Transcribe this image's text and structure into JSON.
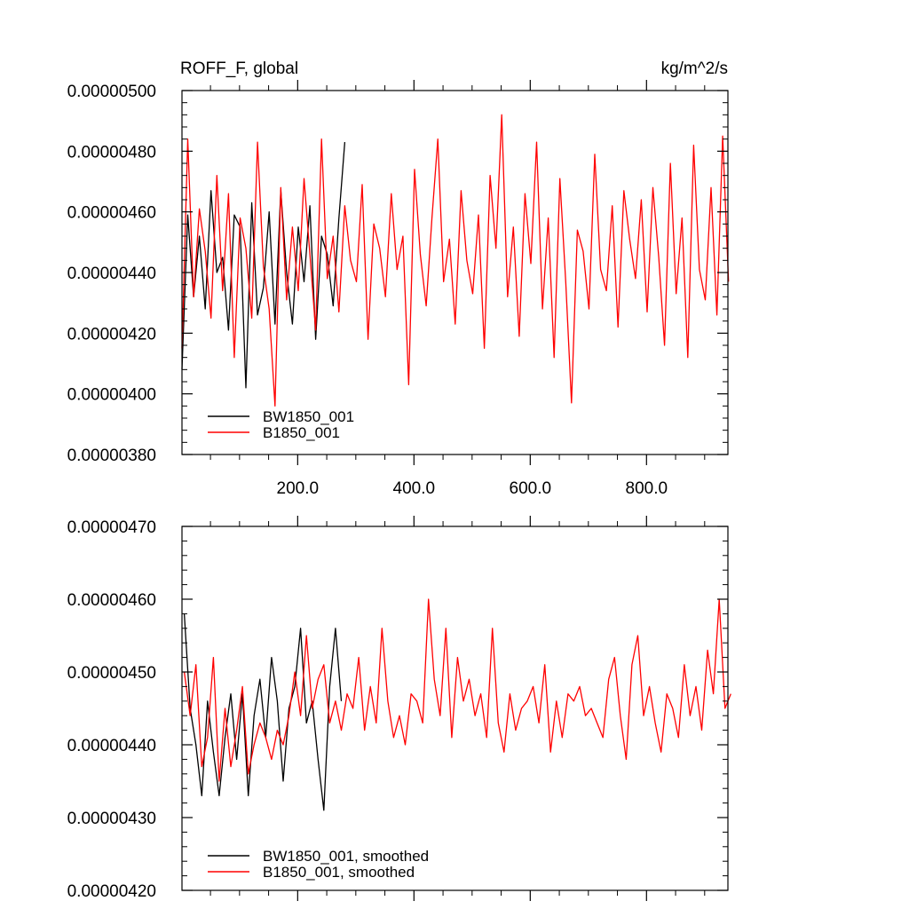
{
  "chart_data": [
    {
      "type": "line",
      "title": "ROFF_F, global",
      "title_right": "kg/m^2/s",
      "xlabel": "",
      "ylabel": "",
      "xlim": [
        1,
        940
      ],
      "ylim": [
        3.8e-06,
        5e-06
      ],
      "x_ticks": [
        200.0,
        400.0,
        600.0,
        800.0
      ],
      "x_tick_labels": [
        "200.0",
        "400.0",
        "600.0",
        "800.0"
      ],
      "y_ticks": [
        3.8e-06,
        4e-06,
        4.2e-06,
        4.4e-06,
        4.6e-06,
        4.8e-06,
        5e-06
      ],
      "y_tick_labels": [
        "0.00000380",
        "0.00000400",
        "0.00000420",
        "0.00000440",
        "0.00000460",
        "0.00000480",
        "0.00000500"
      ],
      "legend_position": "bottom-left",
      "grid": false,
      "series": [
        {
          "name": "BW1850_001",
          "color": "#000000",
          "x_start": 1,
          "x_step": 10,
          "values": [
            4.08e-06,
            4.59e-06,
            4.32e-06,
            4.52e-06,
            4.28e-06,
            4.67e-06,
            4.4e-06,
            4.45e-06,
            4.21e-06,
            4.59e-06,
            4.55e-06,
            4.02e-06,
            4.63e-06,
            4.26e-06,
            4.35e-06,
            4.6e-06,
            4.23e-06,
            4.67e-06,
            4.4e-06,
            4.23e-06,
            4.55e-06,
            4.37e-06,
            4.62e-06,
            4.18e-06,
            4.52e-06,
            4.46e-06,
            4.29e-06,
            4.58e-06,
            4.83e-06
          ]
        },
        {
          "name": "B1850_001",
          "color": "#ff0000",
          "x_start": 1,
          "x_step": 10,
          "values": [
            4.15e-06,
            4.84e-06,
            4.32e-06,
            4.61e-06,
            4.47e-06,
            4.25e-06,
            4.72e-06,
            4.34e-06,
            4.66e-06,
            4.12e-06,
            4.58e-06,
            4.48e-06,
            4.25e-06,
            4.83e-06,
            4.42e-06,
            4.28e-06,
            3.96e-06,
            4.68e-06,
            4.31e-06,
            4.55e-06,
            4.34e-06,
            4.71e-06,
            4.46e-06,
            4.21e-06,
            4.84e-06,
            4.38e-06,
            4.52e-06,
            4.27e-06,
            4.62e-06,
            4.44e-06,
            4.37e-06,
            4.69e-06,
            4.18e-06,
            4.56e-06,
            4.48e-06,
            4.32e-06,
            4.66e-06,
            4.41e-06,
            4.52e-06,
            4.03e-06,
            4.74e-06,
            4.46e-06,
            4.29e-06,
            4.58e-06,
            4.84e-06,
            4.37e-06,
            4.51e-06,
            4.23e-06,
            4.67e-06,
            4.44e-06,
            4.33e-06,
            4.59e-06,
            4.15e-06,
            4.72e-06,
            4.48e-06,
            4.92e-06,
            4.32e-06,
            4.55e-06,
            4.19e-06,
            4.66e-06,
            4.43e-06,
            4.83e-06,
            4.28e-06,
            4.58e-06,
            4.12e-06,
            4.71e-06,
            4.37e-06,
            3.97e-06,
            4.54e-06,
            4.47e-06,
            4.28e-06,
            4.79e-06,
            4.41e-06,
            4.34e-06,
            4.62e-06,
            4.22e-06,
            4.67e-06,
            4.51e-06,
            4.38e-06,
            4.64e-06,
            4.27e-06,
            4.68e-06,
            4.45e-06,
            4.16e-06,
            4.76e-06,
            4.33e-06,
            4.58e-06,
            4.12e-06,
            4.82e-06,
            4.41e-06,
            4.31e-06,
            4.68e-06,
            4.26e-06,
            4.85e-06,
            4.37e-06
          ]
        }
      ]
    },
    {
      "type": "line",
      "title": "",
      "xlabel": "",
      "ylabel": "",
      "xlim": [
        1,
        940
      ],
      "ylim": [
        4.2e-06,
        4.7e-06
      ],
      "x_ticks": [
        200,
        400,
        600,
        800
      ],
      "y_ticks": [
        4.2e-06,
        4.3e-06,
        4.4e-06,
        4.5e-06,
        4.6e-06,
        4.7e-06
      ],
      "y_tick_labels": [
        "0.00000420",
        "0.00000430",
        "0.00000440",
        "0.00000450",
        "0.00000460",
        "0.00000470"
      ],
      "legend_position": "bottom-left",
      "grid": false,
      "series": [
        {
          "name": "BW1850_001, smoothed",
          "color": "#000000",
          "x_start": 5,
          "x_step": 10,
          "values": [
            4.58e-06,
            4.45e-06,
            4.4e-06,
            4.33e-06,
            4.46e-06,
            4.39e-06,
            4.33e-06,
            4.41e-06,
            4.47e-06,
            4.38e-06,
            4.47e-06,
            4.33e-06,
            4.44e-06,
            4.49e-06,
            4.41e-06,
            4.52e-06,
            4.46e-06,
            4.35e-06,
            4.45e-06,
            4.48e-06,
            4.56e-06,
            4.43e-06,
            4.46e-06,
            4.38e-06,
            4.31e-06,
            4.48e-06,
            4.56e-06,
            4.46e-06
          ]
        },
        {
          "name": "B1850_001, smoothed",
          "color": "#ff0000",
          "x_start": 5,
          "x_step": 10,
          "values": [
            4.5e-06,
            4.44e-06,
            4.51e-06,
            4.37e-06,
            4.41e-06,
            4.52e-06,
            4.35e-06,
            4.45e-06,
            4.37e-06,
            4.42e-06,
            4.48e-06,
            4.36e-06,
            4.4e-06,
            4.43e-06,
            4.41e-06,
            4.38e-06,
            4.42e-06,
            4.4e-06,
            4.44e-06,
            4.5e-06,
            4.44e-06,
            4.55e-06,
            4.45e-06,
            4.49e-06,
            4.51e-06,
            4.43e-06,
            4.46e-06,
            4.42e-06,
            4.47e-06,
            4.45e-06,
            4.52e-06,
            4.42e-06,
            4.48e-06,
            4.43e-06,
            4.56e-06,
            4.46e-06,
            4.41e-06,
            4.44e-06,
            4.4e-06,
            4.47e-06,
            4.46e-06,
            4.43e-06,
            4.6e-06,
            4.49e-06,
            4.44e-06,
            4.56e-06,
            4.41e-06,
            4.52e-06,
            4.46e-06,
            4.49e-06,
            4.44e-06,
            4.47e-06,
            4.41e-06,
            4.56e-06,
            4.43e-06,
            4.39e-06,
            4.47e-06,
            4.42e-06,
            4.45e-06,
            4.46e-06,
            4.48e-06,
            4.43e-06,
            4.51e-06,
            4.39e-06,
            4.46e-06,
            4.41e-06,
            4.47e-06,
            4.46e-06,
            4.48e-06,
            4.44e-06,
            4.45e-06,
            4.43e-06,
            4.41e-06,
            4.49e-06,
            4.52e-06,
            4.44e-06,
            4.38e-06,
            4.51e-06,
            4.55e-06,
            4.44e-06,
            4.48e-06,
            4.43e-06,
            4.39e-06,
            4.47e-06,
            4.45e-06,
            4.41e-06,
            4.51e-06,
            4.44e-06,
            4.48e-06,
            4.42e-06,
            4.53e-06,
            4.47e-06,
            4.6e-06,
            4.45e-06,
            4.47e-06
          ]
        }
      ]
    }
  ]
}
